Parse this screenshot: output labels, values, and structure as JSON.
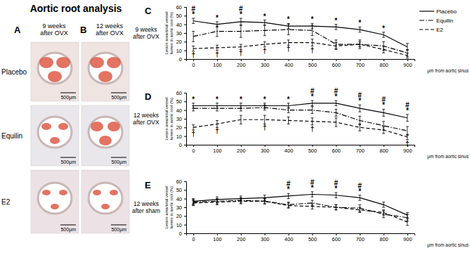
{
  "figure": {
    "title": "Aortic root analysis",
    "panels": [
      {
        "label": "A",
        "heading": [
          "9 weeks",
          "after OVX"
        ]
      },
      {
        "label": "B",
        "heading": [
          "12 weeks",
          "after OVX"
        ]
      }
    ],
    "rows": [
      "Placebo",
      "Equilin",
      "E2"
    ],
    "scale_bar": "500μm"
  },
  "chart_data": [
    {
      "type": "line",
      "title": "C",
      "subtitle": [
        "9 weeks",
        "after OVX"
      ],
      "ylabel": [
        "Lesion area/total vessel",
        "lumen in aortic root (%)"
      ],
      "xlabel": "μm from aortic sinus",
      "x": [
        0,
        100,
        200,
        300,
        400,
        500,
        600,
        700,
        800,
        900
      ],
      "xlim": [
        -30,
        930
      ],
      "xticks": [
        0,
        100,
        200,
        300,
        400,
        500,
        600,
        700,
        800,
        900
      ],
      "ylim": [
        0,
        60
      ],
      "yticks": [
        0,
        10,
        20,
        30,
        40,
        50,
        60
      ],
      "legend": "right",
      "series": [
        {
          "name": "Placebo",
          "color": "#000000",
          "line_style": "solid",
          "values": [
            44,
            40,
            43,
            42,
            38,
            38,
            37,
            34,
            28,
            14
          ],
          "errors": [
            3,
            3,
            4,
            3,
            3,
            3,
            3,
            3,
            3,
            4
          ],
          "significance": [
            [
              "#",
              "*"
            ],
            [
              "*"
            ],
            [
              "#",
              "*"
            ],
            [
              "*"
            ],
            [
              "*"
            ],
            [
              "*"
            ],
            [
              "*"
            ],
            [
              "*"
            ],
            [
              "*"
            ],
            null
          ]
        },
        {
          "name": "Equilin",
          "color": "#000000",
          "line_style": "dashdot",
          "values": [
            26,
            32,
            32,
            33,
            34,
            33,
            17,
            17,
            15,
            7
          ],
          "errors": [
            6,
            6,
            7,
            6,
            6,
            6,
            5,
            5,
            5,
            4
          ]
        },
        {
          "name": "E2",
          "color": "#000000",
          "line_style": "dashed",
          "values": [
            12,
            13,
            14,
            17,
            19,
            19,
            15,
            17,
            11,
            4
          ],
          "errors": [
            3,
            3,
            3,
            3,
            3,
            4,
            4,
            3,
            4,
            3
          ],
          "significance": [
            [
              "†"
            ],
            [
              "†"
            ],
            [
              "†"
            ],
            [
              "†"
            ],
            [
              "†"
            ],
            [
              "†"
            ],
            null,
            null,
            null,
            null
          ]
        }
      ]
    },
    {
      "type": "line",
      "title": "D",
      "subtitle": [
        "12 weeks",
        "after OVX"
      ],
      "ylabel": [
        "Lesion area/total vessel",
        "lumen in aortic root (%)"
      ],
      "xlabel": "μm from aortic sinus",
      "x": [
        0,
        100,
        200,
        300,
        400,
        500,
        600,
        700,
        800,
        900
      ],
      "xlim": [
        -30,
        930
      ],
      "xticks": [
        0,
        100,
        200,
        300,
        400,
        500,
        600,
        700,
        800,
        900
      ],
      "ylim": [
        0,
        60
      ],
      "yticks": [
        0,
        10,
        20,
        30,
        40,
        50,
        60
      ],
      "series": [
        {
          "name": "Placebo",
          "color": "#000000",
          "line_style": "solid",
          "values": [
            45,
            45,
            45,
            45,
            45,
            48,
            48,
            42,
            37,
            31
          ],
          "errors": [
            3,
            3,
            3,
            3,
            3,
            3,
            3,
            4,
            4,
            4
          ],
          "significance": [
            [
              "*"
            ],
            [
              "*"
            ],
            [
              "*"
            ],
            [
              "*"
            ],
            [
              "*"
            ],
            [
              "#",
              "*"
            ],
            [
              "#",
              "*"
            ],
            [
              "#",
              "*"
            ],
            [
              "#",
              "*"
            ],
            [
              "#",
              "*"
            ]
          ]
        },
        {
          "name": "Equilin",
          "color": "#000000",
          "line_style": "dashdot",
          "values": [
            42,
            42,
            42,
            43,
            40,
            40,
            37,
            28,
            22,
            16
          ],
          "errors": [
            3,
            3,
            3,
            3,
            3,
            4,
            4,
            5,
            5,
            5
          ]
        },
        {
          "name": "E2",
          "color": "#000000",
          "line_style": "dashed",
          "values": [
            20,
            24,
            29,
            29,
            28,
            27,
            26,
            20,
            17,
            9
          ],
          "errors": [
            3,
            4,
            5,
            5,
            4,
            4,
            5,
            4,
            4,
            3
          ],
          "significance": [
            [
              "†"
            ],
            [
              "†"
            ],
            null,
            [
              "†"
            ],
            null,
            [
              "†"
            ],
            null,
            null,
            null,
            [
              "†"
            ]
          ]
        }
      ]
    },
    {
      "type": "line",
      "title": "E",
      "subtitle": [
        "12 weeks",
        "after sham"
      ],
      "ylabel": [
        "Lesion area/total vessel",
        "lumen in aortic root (%)"
      ],
      "xlabel": "μm from aortic sinus",
      "x": [
        0,
        100,
        200,
        300,
        400,
        500,
        600,
        700,
        800,
        900
      ],
      "xlim": [
        -30,
        930
      ],
      "xticks": [
        0,
        100,
        200,
        300,
        400,
        500,
        600,
        700,
        800,
        900
      ],
      "ylim": [
        0,
        60
      ],
      "yticks": [
        0,
        10,
        20,
        30,
        40,
        50,
        60
      ],
      "series": [
        {
          "name": "Placebo",
          "color": "#000000",
          "line_style": "solid",
          "values": [
            37,
            39,
            40,
            41,
            43,
            45,
            44,
            41,
            33,
            21
          ],
          "errors": [
            3,
            3,
            3,
            3,
            3,
            3,
            3,
            3,
            3,
            3
          ],
          "significance": [
            null,
            null,
            null,
            null,
            [
              "#",
              "*"
            ],
            [
              "#",
              "*"
            ],
            [
              "#",
              "*"
            ],
            [
              "#",
              "*"
            ],
            null,
            null
          ]
        },
        {
          "name": "Equilin",
          "color": "#000000",
          "line_style": "dashdot",
          "values": [
            36,
            37,
            38,
            37,
            33,
            35,
            30,
            29,
            22,
            18
          ],
          "errors": [
            3,
            3,
            3,
            3,
            3,
            3,
            3,
            4,
            4,
            4
          ]
        },
        {
          "name": "E2",
          "color": "#000000",
          "line_style": "dashed",
          "values": [
            35,
            36,
            37,
            37,
            32,
            31,
            30,
            27,
            24,
            13
          ],
          "errors": [
            3,
            3,
            3,
            3,
            3,
            3,
            3,
            3,
            3,
            4
          ]
        }
      ]
    }
  ]
}
